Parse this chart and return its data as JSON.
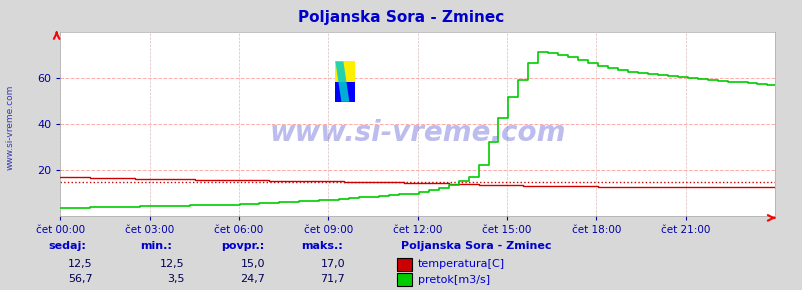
{
  "title": "Poljanska Sora - Zminec",
  "title_color": "#0000cc",
  "bg_color": "#d8d8d8",
  "plot_bg_color": "#ffffff",
  "grid_color_h": "#ffaaaa",
  "grid_color_v": "#dddddd",
  "x_label_color": "#0000aa",
  "y_label_color": "#0000aa",
  "watermark": "www.si-vreme.com",
  "watermark_color": "#2222cc",
  "ylim": [
    0,
    80
  ],
  "yticks": [
    20,
    40,
    60
  ],
  "n_points": 288,
  "temp_color": "#cc0000",
  "flow_color": "#00cc00",
  "temp_avg_val": 15.0,
  "temp_current": 12.5,
  "temp_min": 12.5,
  "temp_avg": 15.0,
  "temp_max": 17.0,
  "flow_current": 56.7,
  "flow_min": 3.5,
  "flow_avg": 24.7,
  "flow_max": 71.7,
  "legend_title": "Poljanska Sora - Zminec",
  "legend_color": "#0000cc",
  "left_label": "www.si-vreme.com",
  "left_label_color": "#0000aa",
  "bottom_labels": [
    "sedaj:",
    "min.:",
    "povpr.:",
    "maks.:"
  ],
  "bottom_label_color": "#0000cc",
  "bottom_value_color": "#000055",
  "x_ticks_labels": [
    "čet 00:00",
    "čet 03:00",
    "čet 06:00",
    "čet 09:00",
    "čet 12:00",
    "čet 15:00",
    "čet 18:00",
    "čet 21:00"
  ],
  "icon_yellow": "#ffee00",
  "icon_blue_top": "#0000ff",
  "icon_blue_bot": "#0066cc"
}
